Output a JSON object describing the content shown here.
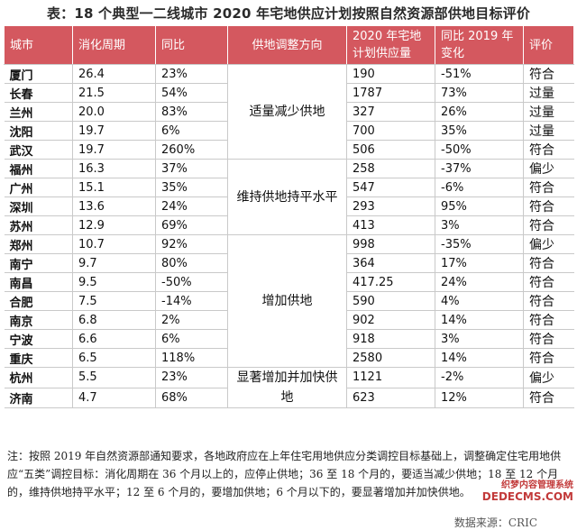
{
  "title": "表：18 个典型一二线城市 2020 年宅地供应计划按照自然资源部供地目标评价",
  "headers": [
    "城市",
    "消化周期",
    "同比",
    "供地调整方向",
    "2020 年宅地计划供应量",
    "同比 2019 年变化",
    "评价"
  ],
  "rows": [
    {
      "city": "厦门",
      "cycle": "26.4",
      "yoy": "23%",
      "supply": "190",
      "change": "-51%",
      "eval": "符合"
    },
    {
      "city": "长春",
      "cycle": "21.5",
      "yoy": "54%",
      "supply": "1787",
      "change": "73%",
      "eval": "过量"
    },
    {
      "city": "兰州",
      "cycle": "20.0",
      "yoy": "83%",
      "supply": "327",
      "change": "26%",
      "eval": "过量"
    },
    {
      "city": "沈阳",
      "cycle": "19.7",
      "yoy": "6%",
      "supply": "700",
      "change": "35%",
      "eval": "过量"
    },
    {
      "city": "武汉",
      "cycle": "19.7",
      "yoy": "260%",
      "supply": "506",
      "change": "-50%",
      "eval": "符合"
    },
    {
      "city": "福州",
      "cycle": "16.3",
      "yoy": "37%",
      "supply": "258",
      "change": "-37%",
      "eval": "偏少"
    },
    {
      "city": "广州",
      "cycle": "15.1",
      "yoy": "35%",
      "supply": "547",
      "change": "-6%",
      "eval": "符合"
    },
    {
      "city": "深圳",
      "cycle": "13.6",
      "yoy": "24%",
      "supply": "293",
      "change": "95%",
      "eval": "符合"
    },
    {
      "city": "苏州",
      "cycle": "12.9",
      "yoy": "69%",
      "supply": "413",
      "change": "3%",
      "eval": "符合"
    },
    {
      "city": "郑州",
      "cycle": "10.7",
      "yoy": "92%",
      "supply": "998",
      "change": "-35%",
      "eval": "偏少"
    },
    {
      "city": "南宁",
      "cycle": "9.7",
      "yoy": "80%",
      "supply": "364",
      "change": "17%",
      "eval": "符合"
    },
    {
      "city": "南昌",
      "cycle": "9.5",
      "yoy": "-50%",
      "supply": "417.25",
      "change": "24%",
      "eval": "符合"
    },
    {
      "city": "合肥",
      "cycle": "7.5",
      "yoy": "-14%",
      "supply": "590",
      "change": "4%",
      "eval": "符合"
    },
    {
      "city": "南京",
      "cycle": "6.8",
      "yoy": "2%",
      "supply": "902",
      "change": "14%",
      "eval": "符合"
    },
    {
      "city": "宁波",
      "cycle": "6.6",
      "yoy": "6%",
      "supply": "918",
      "change": "3%",
      "eval": "符合"
    },
    {
      "city": "重庆",
      "cycle": "6.5",
      "yoy": "118%",
      "supply": "2580",
      "change": "14%",
      "eval": "符合"
    },
    {
      "city": "杭州",
      "cycle": "5.5",
      "yoy": "23%",
      "supply": "1121",
      "change": "-2%",
      "eval": "偏少"
    },
    {
      "city": "济南",
      "cycle": "4.7",
      "yoy": "68%",
      "supply": "623",
      "change": "12%",
      "eval": "符合"
    }
  ],
  "directions": [
    {
      "label": "适量减少供地",
      "start": 0,
      "span": 5
    },
    {
      "label": "维持供地持平水平",
      "start": 5,
      "span": 4
    },
    {
      "label": "增加供地",
      "start": 9,
      "span": 7
    },
    {
      "label": "显著增加并加快供地",
      "start": 16,
      "span": 2
    }
  ],
  "footnote": "注：按照 2019 年自然资源部通知要求，各地政府应在上年住宅用地供应分类调控目标基础上，调整确定住宅用地供应“五类”调控目标：消化周期在 36 个月以上的，应停止供地；36 至 18 个月的，要适当减少供地；18 至 12 个月的，维持供地持平水平；12 至 6 个月的，要增加供地；6 个月以下的，要显著增加并加快供地。",
  "source": "数据来源：CRIC",
  "watermark": {
    "line1": "织梦内容管理系统",
    "line2": "DEDECMS.COM"
  },
  "colors": {
    "header_bg": "#d4585f",
    "header_text": "#ffffff",
    "grid": "#c9c9c9"
  }
}
